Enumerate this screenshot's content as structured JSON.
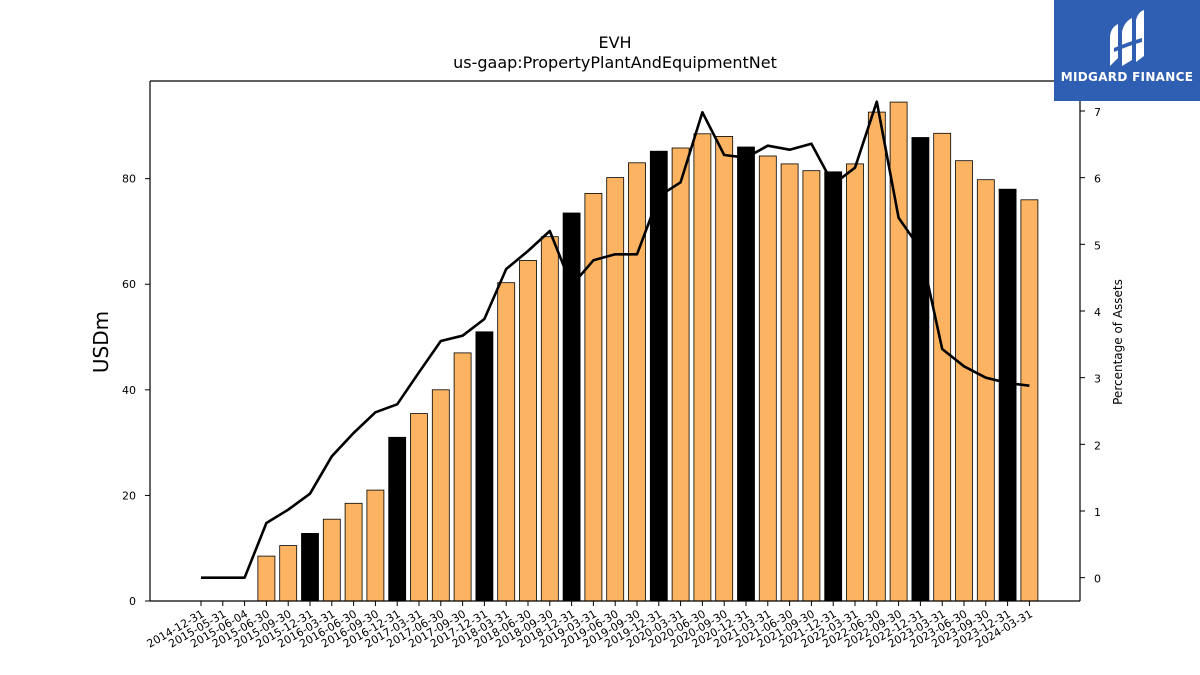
{
  "chart_data": {
    "type": "bar",
    "title": "EVH",
    "subtitle": "us-gaap:PropertyPlantAndEquipmentNet",
    "ylabel": "USDm",
    "y2label": "Percentage of Assets",
    "ylim": [
      0,
      98.5
    ],
    "y2lim": [
      -0.35,
      7.45
    ],
    "yticks": [
      0,
      20,
      40,
      60,
      80
    ],
    "y2ticks": [
      0,
      1,
      2,
      3,
      4,
      5,
      6,
      7
    ],
    "categories": [
      "2014-12-31",
      "2015-05-31",
      "2015-06-04",
      "2015-06-30",
      "2015-09-30",
      "2015-12-31",
      "2016-03-31",
      "2016-06-30",
      "2016-09-30",
      "2016-12-31",
      "2017-03-31",
      "2017-06-30",
      "2017-09-30",
      "2017-12-31",
      "2018-03-31",
      "2018-06-30",
      "2018-09-30",
      "2018-12-31",
      "2019-03-31",
      "2019-06-30",
      "2019-09-30",
      "2019-12-31",
      "2020-03-31",
      "2020-06-30",
      "2020-09-30",
      "2020-12-31",
      "2021-03-31",
      "2021-06-30",
      "2021-09-30",
      "2021-12-31",
      "2022-03-31",
      "2022-06-30",
      "2022-09-30",
      "2022-12-31",
      "2023-03-31",
      "2023-06-30",
      "2023-09-30",
      "2023-12-31",
      "2024-03-31"
    ],
    "series": [
      {
        "type": "bar",
        "values": [
          0,
          0,
          0,
          8.5,
          10.5,
          12.8,
          15.5,
          18.5,
          21,
          31,
          35.5,
          40,
          47,
          51,
          60.3,
          64.5,
          69,
          73.5,
          77.2,
          80.2,
          83,
          85.2,
          85.8,
          88.5,
          88,
          86,
          84.3,
          82.8,
          81.5,
          81.3,
          82.8,
          92.6,
          94.5,
          87.8,
          88.6,
          83.4,
          79.8,
          78,
          76
        ]
      },
      {
        "type": "line",
        "axis": "secondary",
        "values": [
          0,
          0,
          0,
          0.82,
          1.02,
          1.26,
          1.82,
          2.17,
          2.48,
          2.6,
          3.08,
          3.55,
          3.63,
          3.88,
          4.63,
          4.9,
          5.2,
          4.38,
          4.76,
          4.85,
          4.85,
          5.72,
          5.93,
          6.98,
          6.34,
          6.3,
          6.48,
          6.42,
          6.51,
          5.9,
          6.15,
          7.14,
          5.4,
          4.93,
          3.43,
          3.17,
          3.0,
          2.92,
          2.88
        ]
      }
    ],
    "bar_colors": {
      "default": "#fdb462",
      "highlight": "#000000"
    },
    "highlight_indices": [
      5,
      9,
      13,
      17,
      21,
      25,
      29,
      33,
      37
    ],
    "line_color": "#000000",
    "grid": false,
    "legend": "none"
  },
  "branding": {
    "name": "MIDGARD FINANCE",
    "bg_color": "#2f5fb3"
  }
}
